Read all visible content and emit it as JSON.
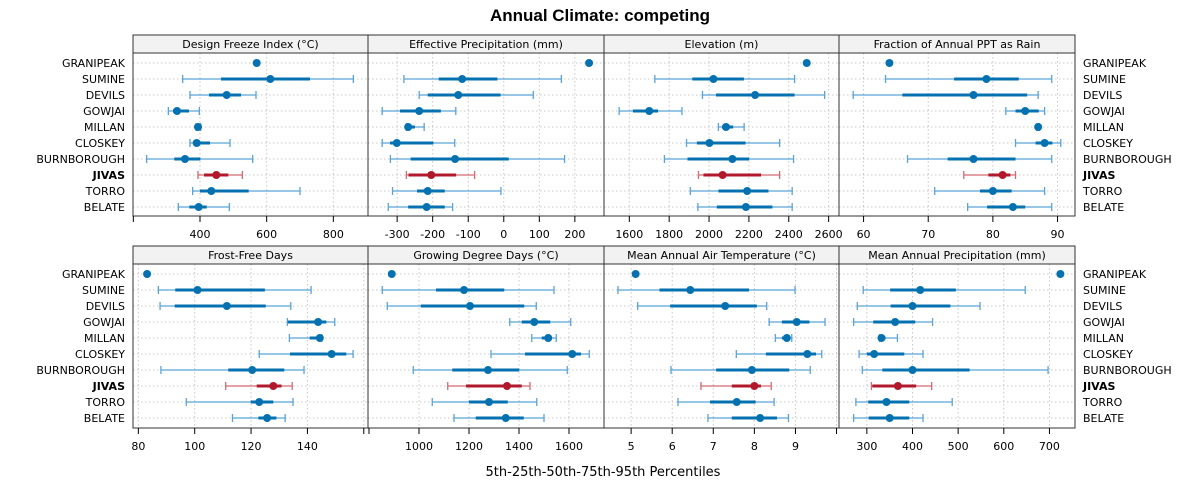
{
  "chart_data": {
    "type": "dotplot-percentile",
    "title": "Annual Climate: competing",
    "xlabel": "5th-25th-50th-75th-95th Percentiles",
    "highlight": "JIVAS",
    "colors": {
      "default": "#0571b0",
      "default_light": "#5aa3d6",
      "highlight": "#b2182b",
      "highlight_light": "#d36a72",
      "strip_bg": "#f2f2f2"
    },
    "categories": [
      "GRANIPEAK",
      "SUMINE",
      "DEVILS",
      "GOWJAI",
      "MILLAN",
      "CLOSKEY",
      "BURNBOROUGH",
      "JIVAS",
      "TORRO",
      "BELATE"
    ],
    "series_fields": [
      "p5",
      "p25",
      "p50",
      "p75",
      "p95"
    ],
    "panels": [
      {
        "title": "Design Freeze Index (°C)",
        "xlim": [
          199,
          904
        ],
        "ticks": [
          200,
          400,
          600,
          800
        ],
        "tick_labels": [
          "",
          "400",
          "600",
          "800"
        ],
        "values": {
          "GRANIPEAK": [
            570,
            570,
            570,
            570,
            570
          ],
          "SUMINE": [
            348,
            463,
            611,
            730,
            860
          ],
          "DEVILS": [
            370,
            427,
            480,
            523,
            568
          ],
          "GOWJAI": [
            305,
            319,
            331,
            367,
            398
          ],
          "MILLAN": [
            388,
            390,
            394,
            398,
            402
          ],
          "CLOSKEY": [
            370,
            380,
            390,
            430,
            490
          ],
          "BURNBOROUGH": [
            240,
            323,
            355,
            401,
            558
          ],
          "JIVAS": [
            394,
            412,
            449,
            485,
            527
          ],
          "TORRO": [
            378,
            400,
            434,
            546,
            700
          ],
          "BELATE": [
            335,
            368,
            396,
            420,
            488
          ]
        }
      },
      {
        "title": "Effective Precipitation (mm)",
        "xlim": [
          -382,
          282
        ],
        "ticks": [
          -300,
          -200,
          -100,
          0,
          100,
          200
        ],
        "tick_labels": [
          "-300",
          "-200",
          "-100",
          "0",
          "100",
          "200"
        ],
        "values": {
          "GRANIPEAK": [
            240,
            240,
            240,
            240,
            240
          ],
          "SUMINE": [
            -281,
            -183,
            -117,
            -18,
            162
          ],
          "DEVILS": [
            -238,
            -214,
            -128,
            -9,
            83
          ],
          "GOWJAI": [
            -342,
            -292,
            -238,
            -177,
            -135
          ],
          "MILLAN": [
            -274,
            -272,
            -269,
            -250,
            -224
          ],
          "CLOSKEY": [
            -342,
            -320,
            -301,
            -198,
            -138
          ],
          "BURNBOROUGH": [
            -319,
            -262,
            -137,
            14,
            171
          ],
          "JIVAS": [
            -274,
            -268,
            -204,
            -134,
            -82
          ],
          "TORRO": [
            -313,
            -244,
            -214,
            -166,
            -8
          ],
          "BELATE": [
            -325,
            -269,
            -217,
            -166,
            -144
          ]
        }
      },
      {
        "title": "Elevation (m)",
        "xlim": [
          1473,
          2652
        ],
        "ticks": [
          1600,
          1800,
          2000,
          2200,
          2400,
          2600
        ],
        "tick_labels": [
          "1600",
          "1800",
          "2000",
          "2200",
          "2400",
          "2600"
        ],
        "values": {
          "GRANIPEAK": [
            2490,
            2490,
            2490,
            2490,
            2490
          ],
          "SUMINE": [
            1728,
            1916,
            2022,
            2175,
            2429
          ],
          "DEVILS": [
            1967,
            2035,
            2231,
            2429,
            2580
          ],
          "GOWJAI": [
            1549,
            1618,
            1700,
            1744,
            1864
          ],
          "MILLAN": [
            2047,
            2065,
            2085,
            2121,
            2176
          ],
          "CLOSKEY": [
            1887,
            1939,
            2002,
            2183,
            2354
          ],
          "BURNBOROUGH": [
            1776,
            1892,
            2117,
            2201,
            2424
          ],
          "JIVAS": [
            1947,
            1972,
            2068,
            2261,
            2354
          ],
          "TORRO": [
            1906,
            2047,
            2191,
            2298,
            2417
          ],
          "BELATE": [
            1944,
            2039,
            2185,
            2318,
            2417
          ]
        }
      },
      {
        "title": "Fraction of Annual PPT as Rain",
        "xlim": [
          56.2,
          92.7
        ],
        "ticks": [
          60,
          70,
          80,
          90
        ],
        "tick_labels": [
          "60",
          "70",
          "80",
          "90"
        ],
        "values": {
          "GRANIPEAK": [
            64.0,
            64.0,
            64.0,
            64.0,
            64.0
          ],
          "SUMINE": [
            63.4,
            74.0,
            79.0,
            84.0,
            89.1
          ],
          "DEVILS": [
            58.4,
            66.0,
            77.0,
            85.3,
            87.0
          ],
          "GOWJAI": [
            82.0,
            83.5,
            85.0,
            87.1,
            88.0
          ],
          "MILLAN": [
            86.8,
            86.9,
            87.0,
            87.1,
            87.2
          ],
          "CLOSKEY": [
            83.5,
            86.6,
            88.0,
            89.2,
            90.5
          ],
          "BURNBOROUGH": [
            66.8,
            73.0,
            77.0,
            83.5,
            89.1
          ],
          "JIVAS": [
            75.5,
            79.3,
            81.5,
            82.7,
            83.5
          ],
          "TORRO": [
            71.0,
            78.0,
            80.0,
            82.9,
            88.0
          ],
          "BELATE": [
            76.1,
            79.1,
            83.1,
            85.0,
            89.1
          ]
        }
      },
      {
        "title": "Frost-Free Days",
        "xlim": [
          78.1,
          161.5
        ],
        "ticks": [
          80,
          100,
          120,
          140,
          160
        ],
        "tick_labels": [
          "80",
          "100",
          "120",
          "140",
          ""
        ],
        "values": {
          "GRANIPEAK": [
            83.1,
            83.1,
            83.1,
            83.1,
            83.1
          ],
          "SUMINE": [
            87.1,
            93.1,
            101.0,
            124.9,
            141.3
          ],
          "DEVILS": [
            87.7,
            92.9,
            111.4,
            125.2,
            134.1
          ],
          "GOWJAI": [
            132.9,
            133.0,
            143.8,
            146.7,
            149.7
          ],
          "MILLAN": [
            133.6,
            140.8,
            144.4,
            144.8,
            145.1
          ],
          "CLOSKEY": [
            122.9,
            133.8,
            148.6,
            153.8,
            156.2
          ],
          "BURNBOROUGH": [
            88.0,
            111.9,
            120.4,
            131.8,
            138.8
          ],
          "JIVAS": [
            111.0,
            122.0,
            127.9,
            130.8,
            134.6
          ],
          "TORRO": [
            97.0,
            119.9,
            122.9,
            127.9,
            134.9
          ],
          "BELATE": [
            113.4,
            122.6,
            125.7,
            129.0,
            132.1
          ]
        }
      },
      {
        "title": "Growing Degree Days (°C)",
        "xlim": [
          796,
          1740
        ],
        "ticks": [
          800,
          1000,
          1200,
          1400,
          1600
        ],
        "tick_labels": [
          "",
          "1000",
          "1200",
          "1400",
          "1600"
        ],
        "values": {
          "GRANIPEAK": [
            891,
            891,
            891,
            891,
            891
          ],
          "SUMINE": [
            853,
            1068,
            1180,
            1341,
            1540
          ],
          "DEVILS": [
            873,
            1007,
            1204,
            1421,
            1469
          ],
          "GOWJAI": [
            1363,
            1411,
            1461,
            1525,
            1607
          ],
          "MILLAN": [
            1451,
            1491,
            1517,
            1530,
            1549
          ],
          "CLOSKEY": [
            1288,
            1424,
            1613,
            1648,
            1681
          ],
          "BURNBOROUGH": [
            977,
            1133,
            1276,
            1401,
            1593
          ],
          "JIVAS": [
            1115,
            1188,
            1352,
            1411,
            1444
          ],
          "TORRO": [
            1053,
            1200,
            1280,
            1355,
            1471
          ],
          "BELATE": [
            1140,
            1227,
            1347,
            1419,
            1500
          ]
        }
      },
      {
        "title": "Mean Annual Air Temperature (°C)",
        "xlim": [
          4.34,
          10.06
        ],
        "ticks": [
          5,
          6,
          7,
          8,
          9,
          10
        ],
        "tick_labels": [
          "5",
          "6",
          "7",
          "8",
          "9",
          ""
        ],
        "values": {
          "GRANIPEAK": [
            5.11,
            5.11,
            5.11,
            5.11,
            5.11
          ],
          "SUMINE": [
            4.68,
            5.69,
            6.44,
            7.87,
            8.99
          ],
          "DEVILS": [
            5.16,
            5.95,
            7.29,
            8.06,
            8.3
          ],
          "GOWJAI": [
            8.36,
            8.67,
            9.03,
            9.34,
            9.72
          ],
          "MILLAN": [
            8.51,
            8.67,
            8.79,
            8.85,
            8.91
          ],
          "CLOSKEY": [
            7.56,
            8.28,
            9.29,
            9.5,
            9.64
          ],
          "BURNBOROUGH": [
            5.97,
            7.07,
            7.94,
            8.85,
            9.36
          ],
          "JIVAS": [
            6.7,
            7.45,
            8.0,
            8.16,
            8.41
          ],
          "TORRO": [
            6.14,
            6.92,
            7.57,
            8.03,
            8.48
          ],
          "BELATE": [
            6.87,
            7.45,
            8.14,
            8.55,
            8.83
          ]
        }
      },
      {
        "title": "Mean Annual Precipitation (mm)",
        "xlim": [
          239,
          756
        ],
        "ticks": [
          300,
          400,
          500,
          600,
          700
        ],
        "tick_labels": [
          "300",
          "400",
          "500",
          "600",
          "700"
        ],
        "values": {
          "GRANIPEAK": [
            724,
            724,
            724,
            724,
            724
          ],
          "SUMINE": [
            292,
            351,
            417,
            495,
            647
          ],
          "DEVILS": [
            279,
            352,
            400,
            483,
            548
          ],
          "GOWJAI": [
            271,
            314,
            362,
            406,
            444
          ],
          "MILLAN": [
            328,
            330,
            332,
            341,
            367
          ],
          "CLOSKEY": [
            283,
            300,
            316,
            382,
            423
          ],
          "BURNBOROUGH": [
            290,
            334,
            400,
            525,
            697
          ],
          "JIVAS": [
            310,
            312,
            368,
            408,
            442
          ],
          "TORRO": [
            276,
            303,
            343,
            393,
            487
          ],
          "BELATE": [
            271,
            304,
            350,
            393,
            423
          ]
        }
      }
    ]
  }
}
